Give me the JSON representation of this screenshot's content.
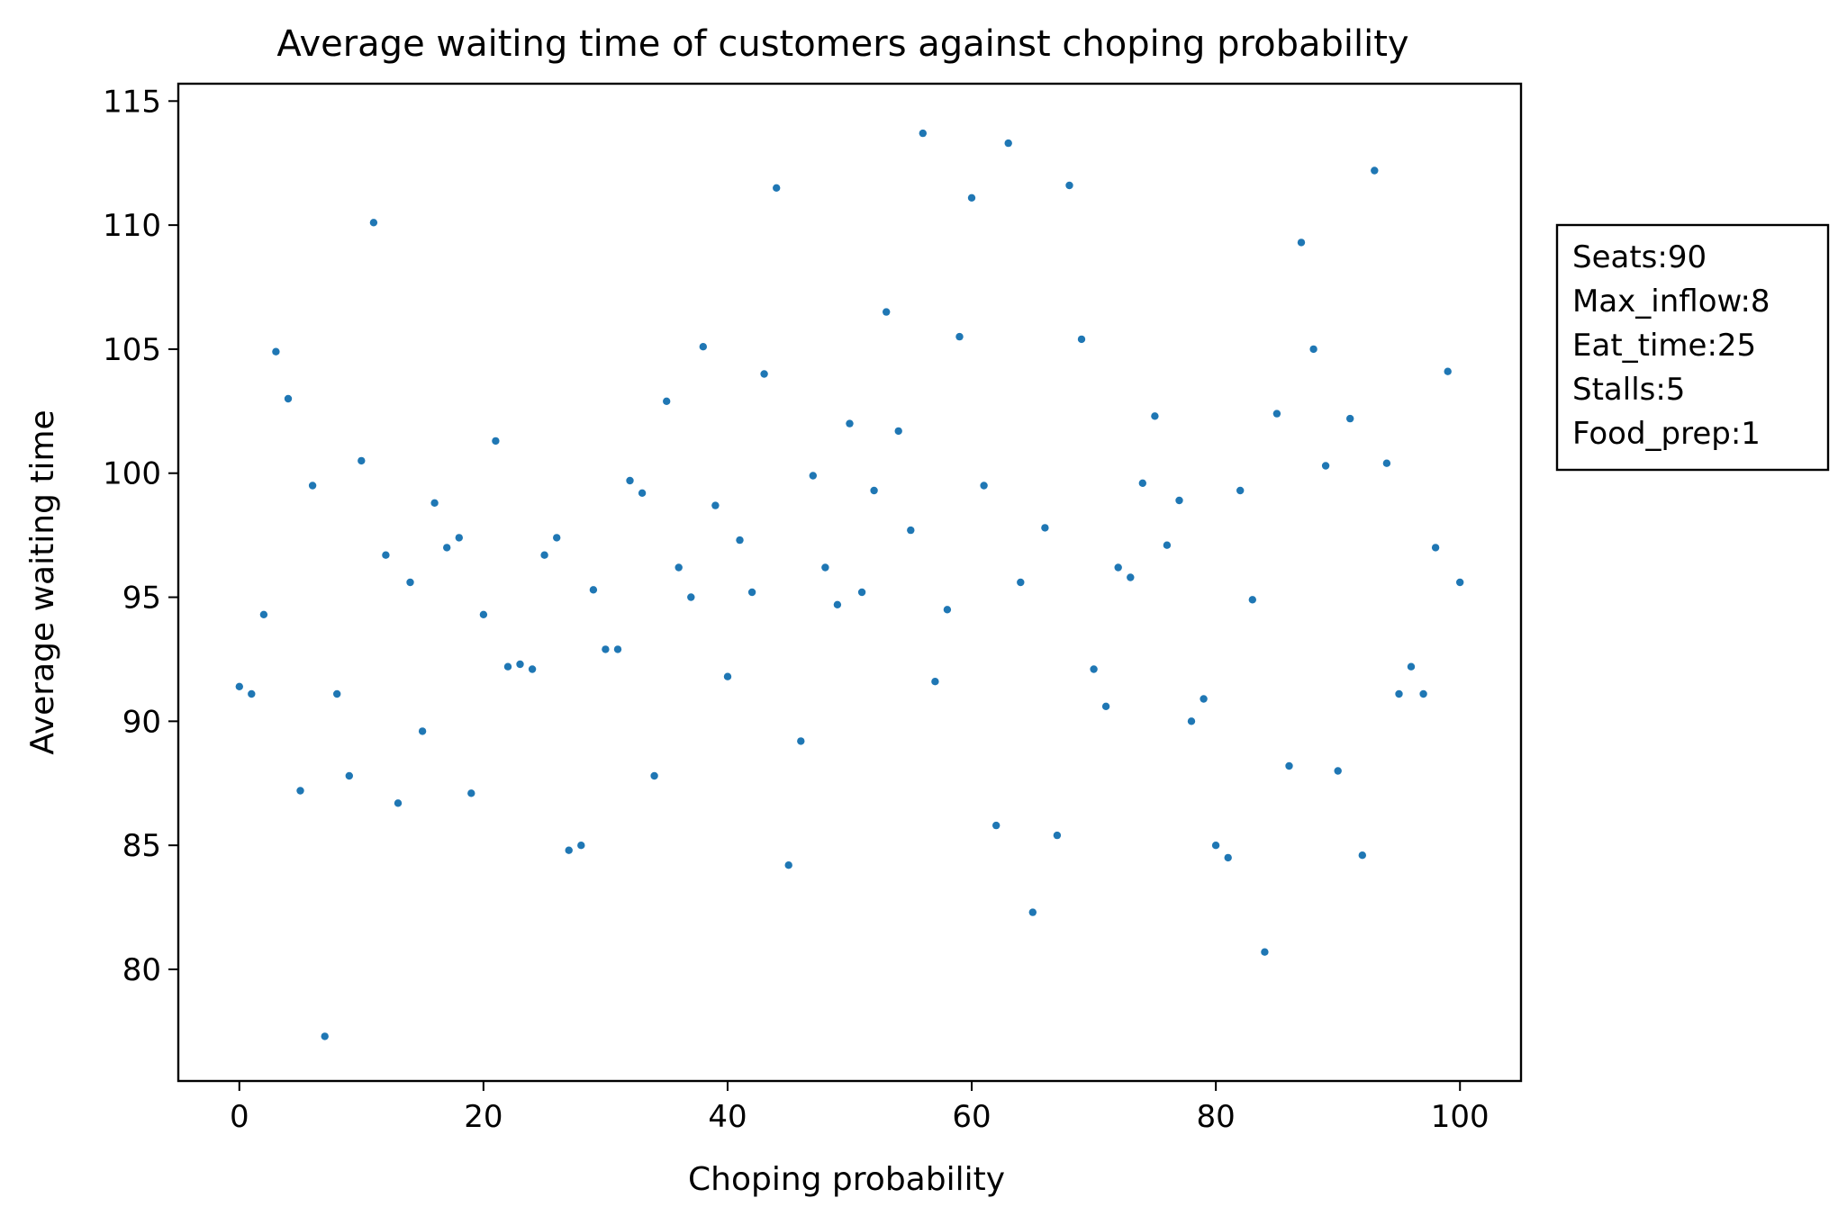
{
  "chart_data": {
    "type": "scatter",
    "title": "Average waiting time of customers against choping probability",
    "xlabel": "Choping probability",
    "ylabel": "Average waiting time",
    "xlim": [
      -5,
      105
    ],
    "ylim": [
      75.5,
      115.7
    ],
    "xticks": [
      0,
      20,
      40,
      60,
      80,
      100
    ],
    "yticks": [
      80,
      85,
      90,
      95,
      100,
      105,
      110,
      115
    ],
    "grid": false,
    "marker_color": "#1f77b4",
    "annotation_lines": [
      "Seats:90",
      "Max_inflow:8",
      "Eat_time:25",
      "Stalls:5",
      "Food_prep:1"
    ],
    "series": [
      {
        "x": [
          0,
          1,
          2,
          3,
          4,
          5,
          6,
          7,
          8,
          9,
          10,
          11,
          12,
          13,
          14,
          15,
          16,
          17,
          18,
          19,
          20,
          21,
          22,
          23,
          24,
          25,
          26,
          27,
          28,
          29,
          30,
          31,
          32,
          33,
          34,
          35,
          36,
          37,
          38,
          39,
          40,
          41,
          42,
          43,
          44,
          45,
          46,
          47,
          48,
          49,
          50,
          51,
          52,
          53,
          54,
          55,
          56,
          57,
          58,
          59,
          60,
          61,
          62,
          63,
          64,
          65,
          66,
          67,
          68,
          69,
          70,
          71,
          72,
          73,
          74,
          75,
          76,
          77,
          78,
          79,
          80,
          81,
          82,
          83,
          84,
          85,
          86,
          87,
          88,
          89,
          90,
          91,
          92,
          93,
          94,
          95,
          96,
          97,
          98,
          99,
          100
        ],
        "y": [
          91.4,
          91.1,
          94.3,
          104.9,
          103.0,
          87.2,
          99.5,
          77.3,
          91.1,
          87.8,
          100.5,
          110.1,
          96.7,
          86.7,
          95.6,
          89.6,
          98.8,
          97.0,
          97.4,
          87.1,
          94.3,
          101.3,
          92.2,
          92.3,
          92.1,
          96.7,
          97.4,
          84.8,
          85.0,
          95.3,
          92.9,
          92.9,
          99.7,
          99.2,
          87.8,
          102.9,
          96.2,
          95.0,
          105.1,
          98.7,
          91.8,
          97.3,
          95.2,
          104.0,
          111.5,
          84.2,
          89.2,
          99.9,
          96.2,
          94.7,
          102.0,
          95.2,
          99.3,
          106.5,
          101.7,
          97.7,
          113.7,
          91.6,
          94.5,
          105.5,
          111.1,
          99.5,
          85.8,
          113.3,
          95.6,
          82.3,
          97.8,
          85.4,
          111.6,
          105.4,
          92.1,
          90.6,
          96.2,
          95.8,
          99.6,
          102.3,
          97.1,
          98.9,
          90.0,
          90.9,
          85.0,
          84.5,
          99.3,
          94.9,
          80.7,
          102.4,
          88.2,
          109.3,
          105.0,
          100.3,
          88.0,
          102.2,
          84.6,
          112.2,
          100.4,
          91.1,
          92.2,
          91.1,
          97.0,
          104.1,
          95.6
        ]
      }
    ]
  }
}
